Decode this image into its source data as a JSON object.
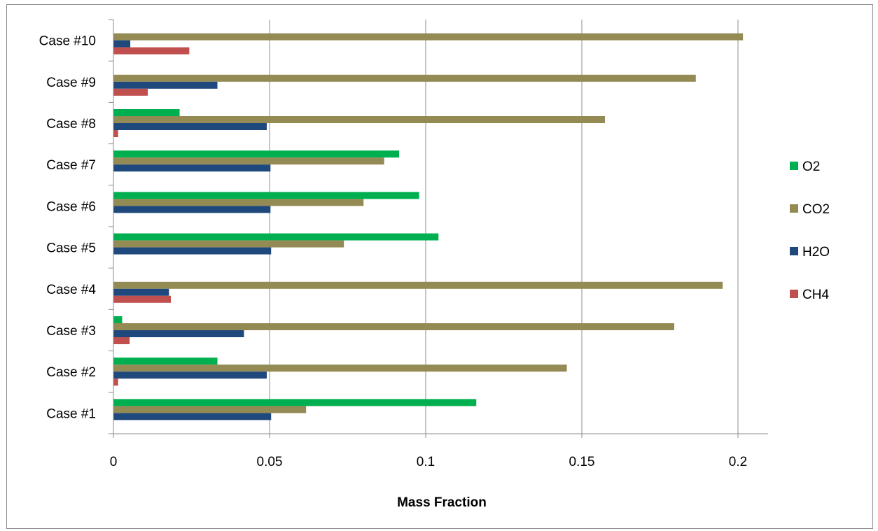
{
  "chart_data": {
    "type": "bar",
    "orientation": "horizontal",
    "title": "",
    "xlabel": "Mass Fraction",
    "ylabel": "",
    "xlim": [
      0,
      0.21
    ],
    "x_ticks": [
      0,
      0.05,
      0.1,
      0.15,
      0.2
    ],
    "x_tick_labels": [
      "0",
      "0.05",
      "0.1",
      "0.15",
      "0.2"
    ],
    "grid": "vertical major gridlines",
    "legend_position": "right",
    "categories": [
      "Case #1",
      "Case #2",
      "Case #3",
      "Case #4",
      "Case #5",
      "Case #6",
      "Case #7",
      "Case #8",
      "Case #9",
      "Case #10"
    ],
    "series": [
      {
        "name": "O2",
        "color": "#00b050",
        "values": [
          0.1162,
          0.0333,
          0.0028,
          0.0,
          0.1041,
          0.0979,
          0.0915,
          0.0212,
          0.0,
          0.0
        ]
      },
      {
        "name": "CO2",
        "color": "#948a54",
        "values": [
          0.0617,
          0.1452,
          0.1796,
          0.1951,
          0.0738,
          0.0801,
          0.0867,
          0.1574,
          0.1865,
          0.2016
        ]
      },
      {
        "name": "H2O",
        "color": "#1f497d",
        "values": [
          0.0505,
          0.0491,
          0.0418,
          0.0178,
          0.0505,
          0.0503,
          0.0503,
          0.0491,
          0.0333,
          0.0054
        ]
      },
      {
        "name": "CH4",
        "color": "#c0504d",
        "values": [
          0.0,
          0.0015,
          0.0052,
          0.0184,
          0.0,
          0.0,
          0.0,
          0.0015,
          0.011,
          0.0243
        ]
      }
    ]
  },
  "legend": {
    "items": [
      {
        "label": "O2",
        "color": "#00b050"
      },
      {
        "label": "CO2",
        "color": "#948a54"
      },
      {
        "label": "H2O",
        "color": "#1f497d"
      },
      {
        "label": "CH4",
        "color": "#c0504d"
      }
    ]
  }
}
